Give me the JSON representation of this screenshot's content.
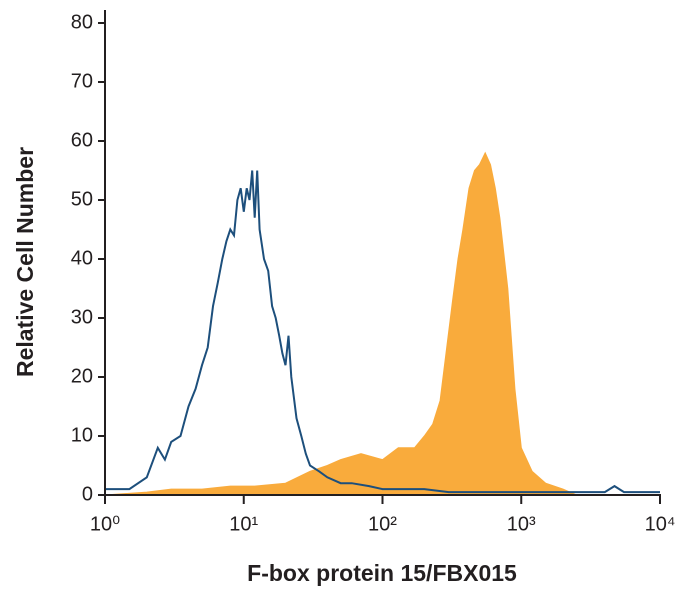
{
  "chart_data": {
    "type": "histogram-overlay",
    "xlabel": "F-box protein 15/FBX015",
    "ylabel": "Relative Cell Number",
    "xscale": "log",
    "xlim": [
      1,
      10000
    ],
    "xticks": [
      {
        "value": 1,
        "label": "10⁰"
      },
      {
        "value": 10,
        "label": "10¹"
      },
      {
        "value": 100,
        "label": "10²"
      },
      {
        "value": 1000,
        "label": "10³"
      },
      {
        "value": 10000,
        "label": "10⁴"
      }
    ],
    "ylim": [
      0,
      80
    ],
    "yticks": [
      0,
      10,
      20,
      30,
      40,
      50,
      60,
      70,
      80
    ],
    "series": [
      {
        "color": "#f9ab3c",
        "fill": true,
        "x": [
          1,
          2,
          3,
          5,
          8,
          12,
          20,
          30,
          40,
          50,
          70,
          100,
          130,
          170,
          200,
          230,
          260,
          290,
          320,
          350,
          380,
          420,
          460,
          500,
          550,
          600,
          650,
          700,
          800,
          900,
          1000,
          1200,
          1500,
          2000,
          2500
        ],
        "values": [
          0,
          0.5,
          1,
          1,
          1.5,
          1.5,
          2,
          4,
          5,
          6,
          7,
          6,
          8,
          8,
          10,
          12,
          16,
          25,
          33,
          40,
          45,
          52,
          55,
          56,
          58,
          56,
          52,
          47,
          35,
          18,
          8,
          4,
          2,
          1,
          0
        ]
      },
      {
        "color": "#1d4f7c",
        "fill": false,
        "x": [
          1,
          1.5,
          2,
          2.4,
          2.7,
          3,
          3.5,
          4,
          4.5,
          5,
          5.5,
          6,
          6.5,
          7,
          7.5,
          8,
          8.5,
          9,
          9.5,
          10,
          10.5,
          11,
          11.5,
          12,
          12.5,
          13,
          14,
          15,
          16,
          17,
          18,
          19,
          20,
          21,
          22,
          24,
          26,
          28,
          30,
          35,
          40,
          50,
          60,
          80,
          100,
          150,
          200,
          300,
          500,
          1000,
          2000,
          4000,
          4700,
          5500,
          10000
        ],
        "values": [
          1,
          1,
          3,
          8,
          6,
          9,
          10,
          15,
          18,
          22,
          25,
          32,
          36,
          40,
          43,
          45,
          44,
          50,
          52,
          48,
          52,
          50,
          55,
          47,
          55,
          45,
          40,
          38,
          32,
          30,
          27,
          24,
          22,
          27,
          20,
          13,
          10,
          7,
          5,
          4,
          3,
          2,
          2,
          1.5,
          1,
          1,
          1,
          0.5,
          0.5,
          0.5,
          0.5,
          0.5,
          1.5,
          0.5,
          0.5
        ]
      }
    ]
  }
}
